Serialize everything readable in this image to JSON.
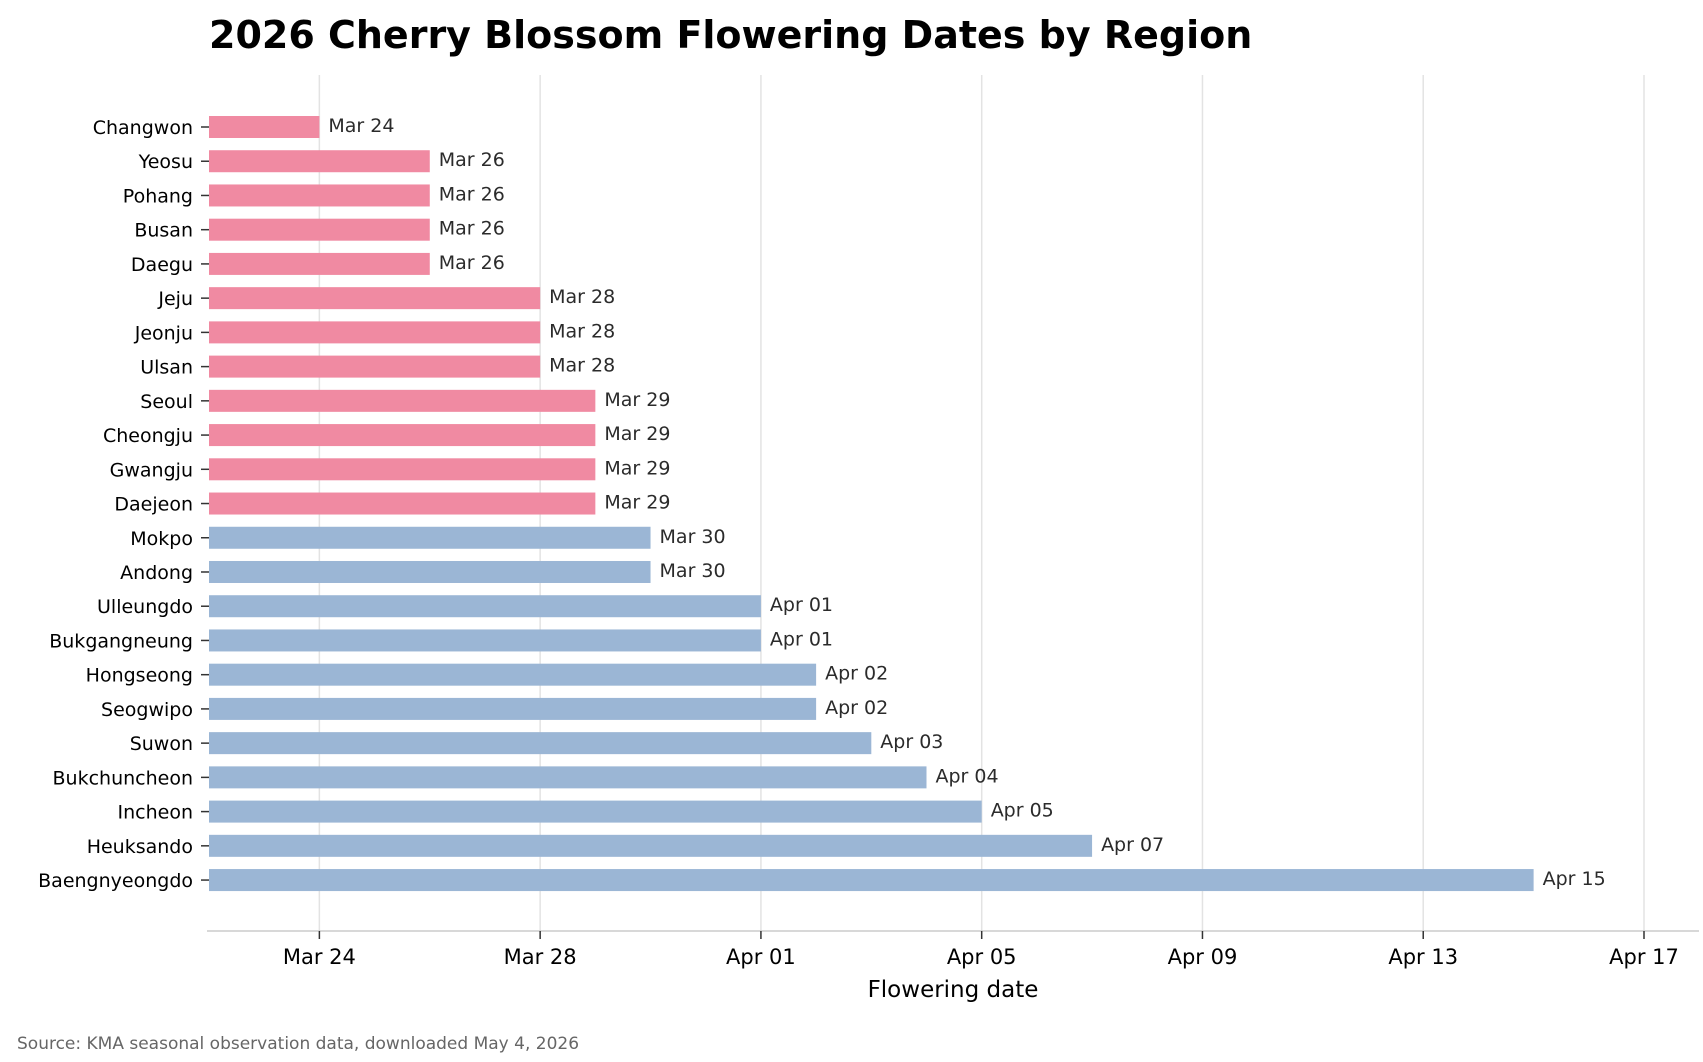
{
  "chart_data": {
    "type": "bar",
    "orientation": "horizontal",
    "title": "2026 Cherry Blossom Flowering Dates by Region",
    "xlabel": "Flowering date",
    "ylabel": "",
    "source": "Source: KMA seasonal observation data, downloaded May 4, 2026",
    "xlim": [
      "2026-03-22",
      "2026-04-17"
    ],
    "x_ticks": [
      {
        "date": "2026-03-24",
        "label": "Mar 24"
      },
      {
        "date": "2026-03-28",
        "label": "Mar 28"
      },
      {
        "date": "2026-04-01",
        "label": "Apr 01"
      },
      {
        "date": "2026-04-05",
        "label": "Apr 05"
      },
      {
        "date": "2026-04-09",
        "label": "Apr 09"
      },
      {
        "date": "2026-04-13",
        "label": "Apr 13"
      },
      {
        "date": "2026-04-17",
        "label": "Apr 17"
      }
    ],
    "grid": "vertical",
    "colors": {
      "early": "#f08aa2",
      "late": "#9bb6d5"
    },
    "bars": [
      {
        "region": "Changwon",
        "date": "2026-03-24",
        "label": "Mar 24",
        "group": "early"
      },
      {
        "region": "Yeosu",
        "date": "2026-03-26",
        "label": "Mar 26",
        "group": "early"
      },
      {
        "region": "Pohang",
        "date": "2026-03-26",
        "label": "Mar 26",
        "group": "early"
      },
      {
        "region": "Busan",
        "date": "2026-03-26",
        "label": "Mar 26",
        "group": "early"
      },
      {
        "region": "Daegu",
        "date": "2026-03-26",
        "label": "Mar 26",
        "group": "early"
      },
      {
        "region": "Jeju",
        "date": "2026-03-28",
        "label": "Mar 28",
        "group": "early"
      },
      {
        "region": "Jeonju",
        "date": "2026-03-28",
        "label": "Mar 28",
        "group": "early"
      },
      {
        "region": "Ulsan",
        "date": "2026-03-28",
        "label": "Mar 28",
        "group": "early"
      },
      {
        "region": "Seoul",
        "date": "2026-03-29",
        "label": "Mar 29",
        "group": "early"
      },
      {
        "region": "Cheongju",
        "date": "2026-03-29",
        "label": "Mar 29",
        "group": "early"
      },
      {
        "region": "Gwangju",
        "date": "2026-03-29",
        "label": "Mar 29",
        "group": "early"
      },
      {
        "region": "Daejeon",
        "date": "2026-03-29",
        "label": "Mar 29",
        "group": "early"
      },
      {
        "region": "Mokpo",
        "date": "2026-03-30",
        "label": "Mar 30",
        "group": "late"
      },
      {
        "region": "Andong",
        "date": "2026-03-30",
        "label": "Mar 30",
        "group": "late"
      },
      {
        "region": "Ulleungdo",
        "date": "2026-04-01",
        "label": "Apr 01",
        "group": "late"
      },
      {
        "region": "Bukgangneung",
        "date": "2026-04-01",
        "label": "Apr 01",
        "group": "late"
      },
      {
        "region": "Hongseong",
        "date": "2026-04-02",
        "label": "Apr 02",
        "group": "late"
      },
      {
        "region": "Seogwipo",
        "date": "2026-04-02",
        "label": "Apr 02",
        "group": "late"
      },
      {
        "region": "Suwon",
        "date": "2026-04-03",
        "label": "Apr 03",
        "group": "late"
      },
      {
        "region": "Bukchuncheon",
        "date": "2026-04-04",
        "label": "Apr 04",
        "group": "late"
      },
      {
        "region": "Incheon",
        "date": "2026-04-05",
        "label": "Apr 05",
        "group": "late"
      },
      {
        "region": "Heuksando",
        "date": "2026-04-07",
        "label": "Apr 07",
        "group": "late"
      },
      {
        "region": "Baengnyeongdo",
        "date": "2026-04-15",
        "label": "Apr 15",
        "group": "late"
      }
    ]
  }
}
